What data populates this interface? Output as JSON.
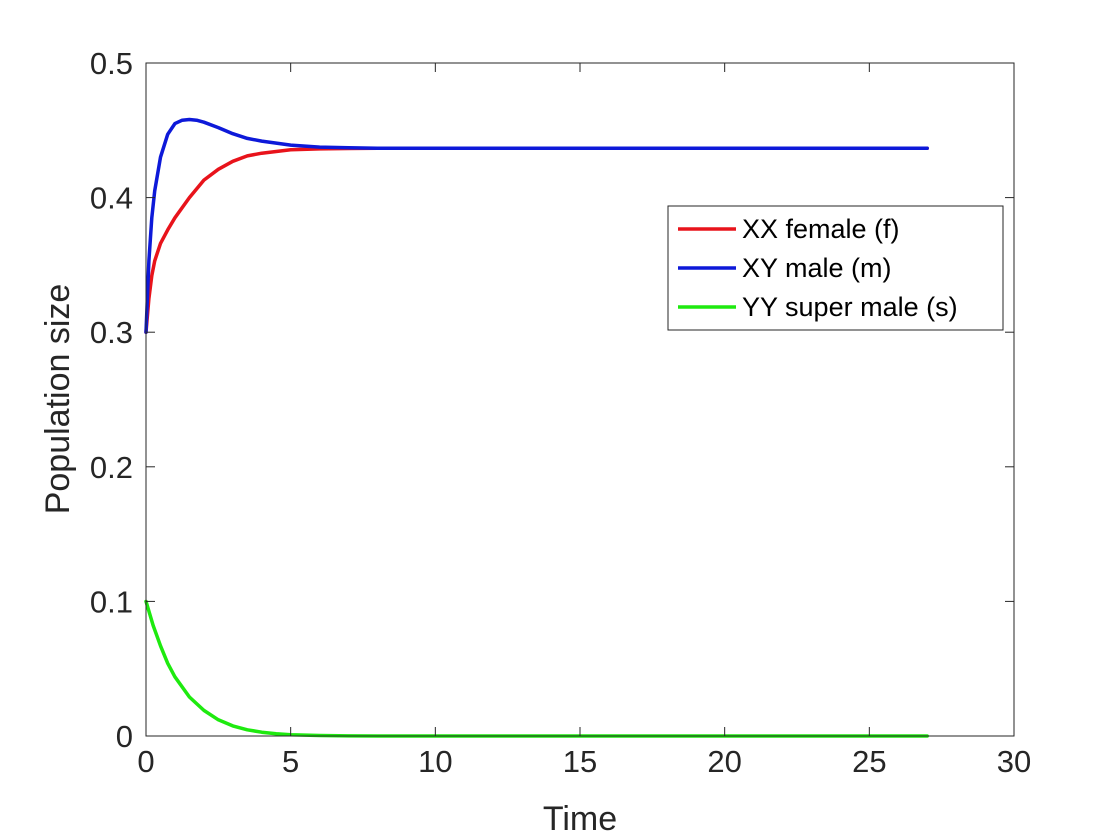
{
  "chart_data": {
    "type": "line",
    "title": "",
    "xlabel": "Time",
    "ylabel": "Population size",
    "xlim": [
      0,
      30
    ],
    "ylim": [
      0,
      0.5
    ],
    "xticks": [
      0,
      5,
      10,
      15,
      20,
      25,
      30
    ],
    "yticks": [
      0,
      0.1,
      0.2,
      0.3,
      0.4,
      0.5
    ],
    "xtick_labels": [
      "0",
      "5",
      "10",
      "15",
      "20",
      "25",
      "30"
    ],
    "ytick_labels": [
      "0",
      "0.1",
      "0.2",
      "0.3",
      "0.4",
      "0.5"
    ],
    "grid": false,
    "legend_position": "upper-right",
    "series": [
      {
        "name": "XX female (f)",
        "color": "#e8131b",
        "x": [
          0,
          0.1,
          0.2,
          0.3,
          0.5,
          0.75,
          1,
          1.5,
          2,
          2.5,
          3,
          3.5,
          4,
          5,
          6,
          7,
          8,
          9,
          10,
          15,
          20,
          25,
          27
        ],
        "y": [
          0.3,
          0.325,
          0.342,
          0.353,
          0.366,
          0.376,
          0.385,
          0.4,
          0.413,
          0.421,
          0.427,
          0.431,
          0.433,
          0.4355,
          0.4362,
          0.4365,
          0.4366,
          0.4366,
          0.4366,
          0.4366,
          0.4366,
          0.4366,
          0.4366
        ]
      },
      {
        "name": "XY male (m)",
        "color": "#0d19d9",
        "x": [
          0,
          0.1,
          0.2,
          0.3,
          0.5,
          0.75,
          1,
          1.25,
          1.5,
          1.75,
          2,
          2.5,
          3,
          3.5,
          4,
          5,
          6,
          7,
          8,
          9,
          10,
          15,
          20,
          25,
          27
        ],
        "y": [
          0.3,
          0.353,
          0.385,
          0.405,
          0.43,
          0.447,
          0.455,
          0.4575,
          0.458,
          0.4575,
          0.456,
          0.452,
          0.4475,
          0.444,
          0.442,
          0.439,
          0.4375,
          0.437,
          0.4366,
          0.4366,
          0.4366,
          0.4366,
          0.4366,
          0.4366,
          0.4366
        ]
      },
      {
        "name": "YY super male (s)",
        "color": "#1eea0f",
        "x": [
          0,
          0.25,
          0.5,
          0.75,
          1,
          1.5,
          2,
          2.5,
          3,
          3.5,
          4,
          4.5,
          5,
          6,
          7,
          8,
          10,
          15,
          20,
          25,
          27
        ],
        "y": [
          0.1,
          0.082,
          0.067,
          0.054,
          0.044,
          0.029,
          0.019,
          0.012,
          0.0075,
          0.0046,
          0.0028,
          0.0017,
          0.001,
          0.0004,
          0.0001,
          0.0,
          0.0,
          0.0,
          0.0,
          0.0,
          0.0
        ]
      }
    ]
  }
}
